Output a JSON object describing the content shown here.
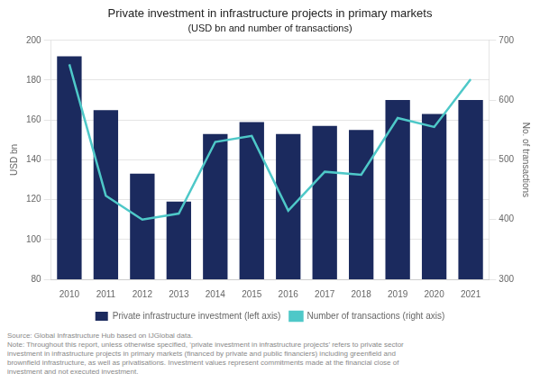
{
  "chart_data": {
    "type": "bar",
    "title": "Private investment in infrastructure projects in primary markets",
    "subtitle": "(USD bn and number of transactions)",
    "categories": [
      "2010",
      "2011",
      "2012",
      "2013",
      "2014",
      "2015",
      "2016",
      "2017",
      "2018",
      "2019",
      "2020",
      "2021"
    ],
    "series": [
      {
        "name": "Private infrastructure investment (left axis)",
        "type": "bar",
        "color": "#1b2a5e",
        "values": [
          192,
          165,
          133,
          119,
          153,
          159,
          153,
          157,
          155,
          170,
          163,
          170
        ]
      },
      {
        "name": "Number of transactions (right axis)",
        "type": "line",
        "color": "#4ec8c8",
        "axis": "y2",
        "values": [
          660,
          440,
          400,
          410,
          530,
          540,
          415,
          480,
          475,
          570,
          555,
          635
        ]
      }
    ],
    "ylabel": "USD bn",
    "y2label": "No. of transactions",
    "ylim": [
      80,
      200
    ],
    "yticks": [
      80,
      100,
      120,
      140,
      160,
      180,
      200
    ],
    "y2lim": [
      300,
      700
    ],
    "y2ticks": [
      300,
      400,
      500,
      600,
      700
    ],
    "grid": true,
    "legend": "bottom",
    "annotations": [
      "Source: Global Infrastructure Hub based on IJGlobal data.",
      "Note: Throughout this report, unless otherwise specified, ‘private investment in infrastructure projects’ refers to private sector",
      "investment in infrastructure projects in primary markets (financed by private and public financiers) including greenfield and",
      "brownfield infrastructure, as well as privatisations. Investment values represent commitments made at the financial close of",
      "investment and not executed investment."
    ]
  }
}
